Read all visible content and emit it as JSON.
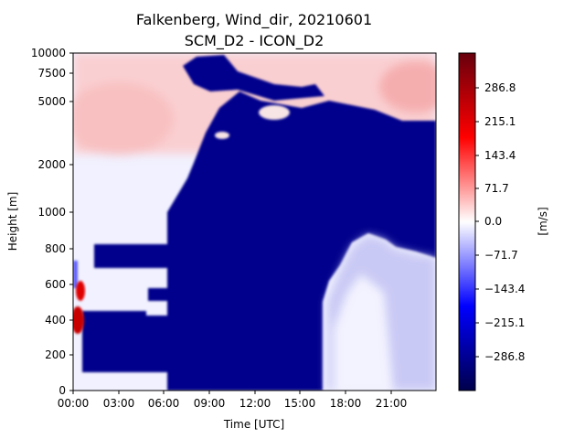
{
  "chart_data": {
    "type": "heatmap",
    "title_line1": "Falkenberg, Wind_dir, 20210601",
    "title_line2": "SCM_D2 - ICON_D2",
    "xlabel": "Time [UTC]",
    "ylabel": "Height [m]",
    "colorbar_label": "[m/s]",
    "colormap": "seismic",
    "x_ticks": [
      "00:00",
      "03:00",
      "06:00",
      "09:00",
      "12:00",
      "15:00",
      "18:00",
      "21:00"
    ],
    "x_range_hours": [
      0,
      24
    ],
    "y_ticks_upper": [
      "10000",
      "7500",
      "5000",
      "2000",
      "1000"
    ],
    "y_ticks_lower": [
      "800",
      "600",
      "400",
      "200",
      "0"
    ],
    "y_scale": "piecewise: linear 0-800 m, log 800-10000 m",
    "colorbar_ticks": [
      "286.8",
      "215.1",
      "143.4",
      "71.7",
      "0.0",
      "−71.7",
      "−143.4",
      "−215.1",
      "−286.8"
    ],
    "colorbar_range": [
      -358.5,
      358.5
    ],
    "colors": {
      "max": "#67000d",
      "pos": "#ff0000",
      "zero": "#ffffff",
      "neg": "#0000ff",
      "min": "#00004c"
    },
    "regions": [
      {
        "name": "low-level negative band (t 0.7-7.3 h)",
        "t_start_h": 0.7,
        "t_end_h": 7.3,
        "z_bottom_m": 90,
        "z_top_m": 410,
        "value": -300
      },
      {
        "name": "low-level negative band (t 0.7-4.8 h)",
        "t_start_h": 0.7,
        "t_end_h": 4.8,
        "z_bottom_m": 90,
        "z_top_m": 440,
        "value": -300
      },
      {
        "name": "negative band 720-820 m",
        "t_start_h": 1.6,
        "t_end_h": 5.8,
        "z_bottom_m": 720,
        "z_top_m": 820,
        "value": -300
      },
      {
        "name": "negative band 520-560 m",
        "t_start_h": 5.2,
        "t_end_h": 7.6,
        "z_bottom_m": 520,
        "z_top_m": 570,
        "value": -300
      },
      {
        "name": "main negative block",
        "t_start_h": 5.8,
        "t_end_h": 16.8,
        "z_bottom_m": 0,
        "z_top_m": 2500,
        "value": -320
      },
      {
        "name": "mid-level negative layer",
        "t_start_h": 7.5,
        "t_end_h": 24,
        "z_bottom_m": 880,
        "z_top_m": 3800,
        "value": -310
      },
      {
        "name": "afternoon weak negative",
        "t_start_h": 16.8,
        "t_end_h": 24,
        "z_bottom_m": 0,
        "z_top_m": 880,
        "value": -60
      },
      {
        "name": "positive core near 400 m",
        "t_start_h": 0,
        "t_end_h": 0.8,
        "z_bottom_m": 350,
        "z_top_m": 450,
        "value": 260
      },
      {
        "name": "positive core near 560 m",
        "t_start_h": 0.3,
        "t_end_h": 0.8,
        "z_bottom_m": 500,
        "z_top_m": 620,
        "value": 200
      },
      {
        "name": "upper positive layer",
        "t_start_h": 0,
        "t_end_h": 24,
        "z_bottom_m": 2500,
        "z_top_m": 10000,
        "value": 50
      }
    ]
  }
}
